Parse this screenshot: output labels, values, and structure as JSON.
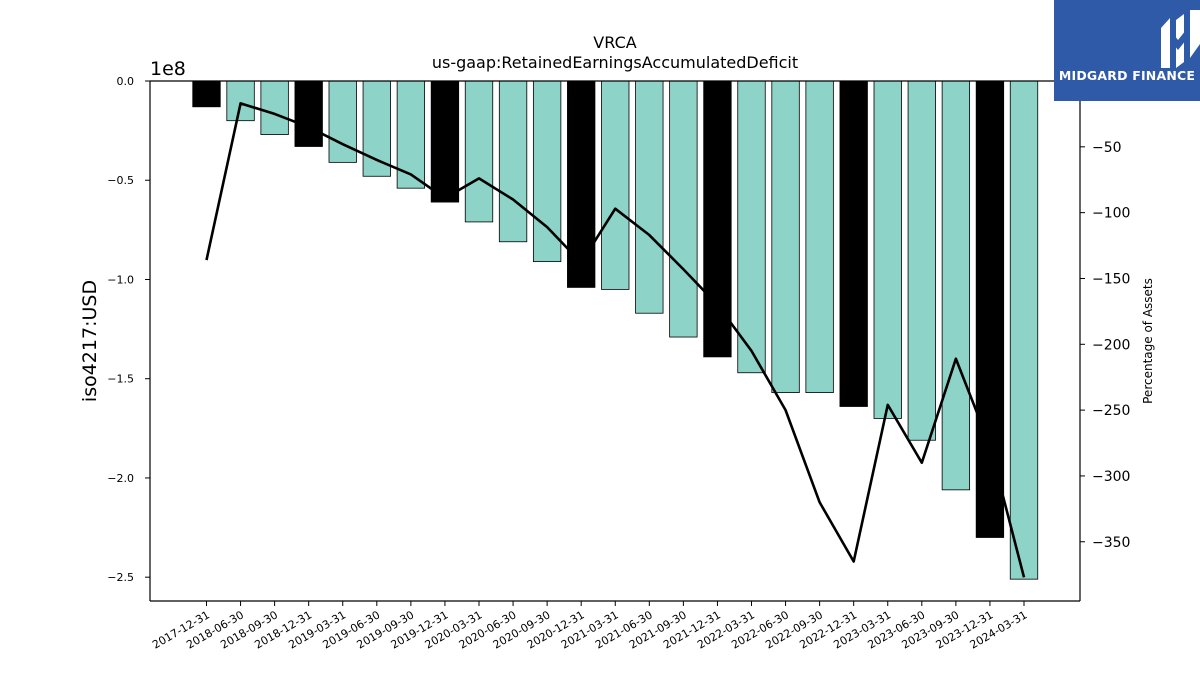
{
  "chart_data": {
    "type": "bar",
    "title": "VRCA",
    "subtitle": "us-gaap:RetainedEarningsAccumulatedDeficit",
    "ylabel": "iso4217:USD",
    "y_scale_label": "1e8",
    "y2label": "Percentage of Assets",
    "ylim": [
      -2.62,
      0.0
    ],
    "y2lim": [
      -395,
      0
    ],
    "yticks": [
      "0.0",
      "−0.5",
      "−1.0",
      "−1.5",
      "−2.0",
      "−2.5"
    ],
    "ytick_values": [
      0.0,
      -0.5,
      -1.0,
      -1.5,
      -2.0,
      -2.5
    ],
    "y2ticks": [
      "−50",
      "−100",
      "−150",
      "−200",
      "−250",
      "−300",
      "−350"
    ],
    "y2tick_values": [
      -50,
      -100,
      -150,
      -200,
      -250,
      -300,
      -350
    ],
    "categories": [
      "2017-12-31",
      "2018-06-30",
      "2018-09-30",
      "2018-12-31",
      "2019-03-31",
      "2019-06-30",
      "2019-09-30",
      "2019-12-31",
      "2020-03-31",
      "2020-06-30",
      "2020-09-30",
      "2020-12-31",
      "2021-03-31",
      "2021-06-30",
      "2021-09-30",
      "2021-12-31",
      "2022-03-31",
      "2022-06-30",
      "2022-09-30",
      "2022-12-31",
      "2023-03-31",
      "2023-06-30",
      "2023-09-30",
      "2023-12-31",
      "2024-03-31"
    ],
    "series": [
      {
        "type": "bar",
        "axis": "left",
        "values": [
          -0.13,
          -0.2,
          -0.27,
          -0.33,
          -0.41,
          -0.48,
          -0.54,
          -0.61,
          -0.71,
          -0.81,
          -0.91,
          -1.04,
          -1.05,
          -1.17,
          -1.29,
          -1.39,
          -1.47,
          -1.57,
          -1.57,
          -1.64,
          -1.7,
          -1.81,
          -2.06,
          -2.3,
          -2.51
        ],
        "annual": [
          true,
          false,
          false,
          true,
          false,
          false,
          false,
          true,
          false,
          false,
          false,
          true,
          false,
          false,
          false,
          true,
          false,
          false,
          false,
          true,
          false,
          false,
          false,
          true,
          false
        ]
      },
      {
        "type": "line",
        "axis": "right",
        "values": [
          -136,
          -17,
          -25,
          -35,
          -48,
          -60,
          -71,
          -89,
          -74,
          -90,
          -111,
          -138,
          -97,
          -117,
          -143,
          -170,
          -205,
          -250,
          -320,
          -365,
          -246,
          -290,
          -211,
          -277,
          -377
        ]
      }
    ],
    "colors": {
      "bar_quarterly": "#8dd3c7",
      "bar_annual": "#000000",
      "line": "#000000"
    }
  },
  "logo": {
    "text": "MIDGARD FINANCE",
    "color": "#2f5aa8"
  }
}
